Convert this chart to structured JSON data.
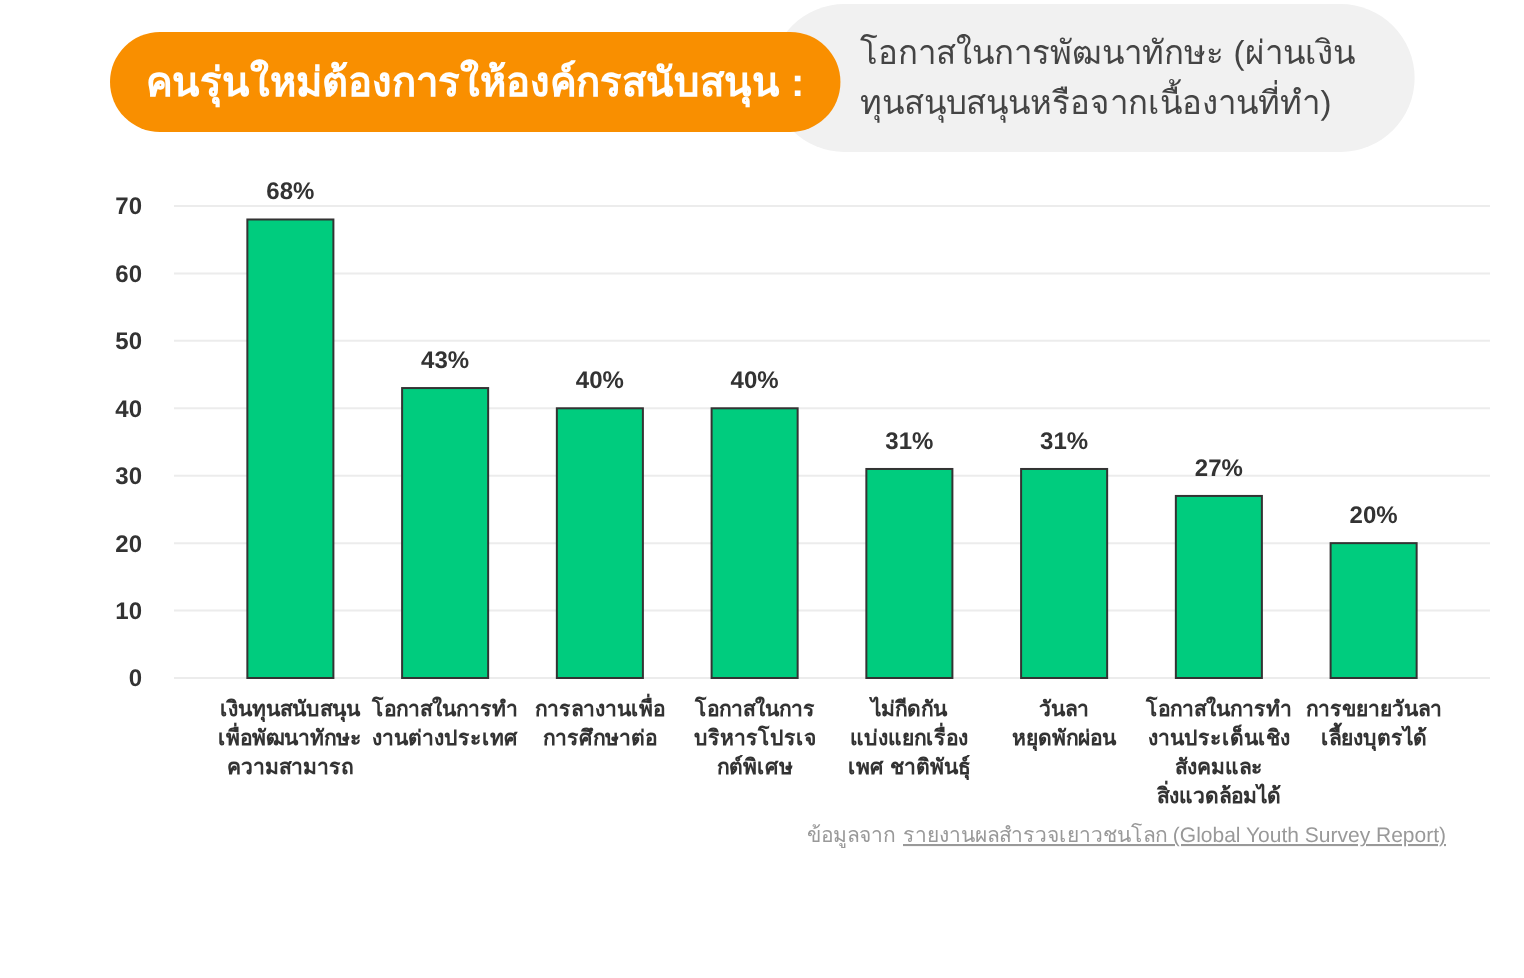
{
  "chart_data": {
    "type": "bar",
    "title": "คนรุ่นใหม่ต้องการให้องค์กรสนับสนุน :",
    "subtitle": "โอกาสในการพัฒนาทักษะ (ผ่านเงิน\nทุนสนุบสนุนหรือจากเนื้องานที่ทำ)",
    "categories": [
      "เงินทุนสนับสนุน\nเพื่อพัฒนาทักษะ\nความสามารถ",
      "โอกาสในการทำ\nงานต่างประเทศ",
      "การลางานเพื่อ\nการศึกษาต่อ",
      "โอกาสในการ\nบริหารโปรเจ\nกต์พิเศษ",
      "ไม่กีดกัน\nแบ่งแยกเรื่อง\nเพศ ชาติพันธุ์",
      "วันลา\nหยุดพักผ่อน",
      "โอกาสในการทำ\nงานประเด็นเชิง\nสังคมและ\nสิ่งแวดล้อมได้",
      "การขยายวันลา\nเลี้ยงบุตรได้"
    ],
    "values": [
      68,
      43,
      40,
      40,
      31,
      31,
      27,
      20
    ],
    "value_labels": [
      "68%",
      "43%",
      "40%",
      "40%",
      "31%",
      "31%",
      "27%",
      "20%"
    ],
    "color": "#00cc7e",
    "ylim": [
      0,
      70
    ],
    "yticks": [
      0,
      10,
      20,
      30,
      40,
      50,
      60,
      70
    ],
    "grid": "y",
    "annotations": [
      "ข้อมูลจาก",
      "รายงานผลสำรวจเยาวชนโลก (Global Youth Survey Report)"
    ]
  }
}
